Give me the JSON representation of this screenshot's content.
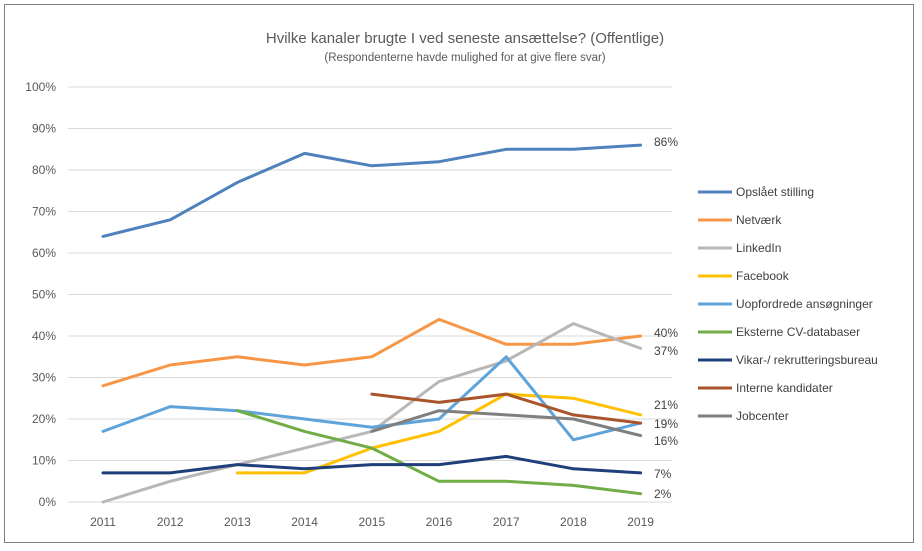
{
  "chart_data": {
    "type": "line",
    "title": "Hvilke kanaler brugte I ved seneste ansættelse? (Offentlige)",
    "subtitle": "(Respondenterne havde mulighed for at give flere svar)",
    "x": [
      "2011",
      "2012",
      "2013",
      "2014",
      "2015",
      "2016",
      "2017",
      "2018",
      "2019"
    ],
    "y_ticks": [
      "0%",
      "10%",
      "20%",
      "30%",
      "40%",
      "50%",
      "60%",
      "70%",
      "80%",
      "90%",
      "100%"
    ],
    "ylim": [
      0,
      100
    ],
    "grid": true,
    "legend_position": "right",
    "series": [
      {
        "name": "Opslået stilling",
        "color": "#4f81bd",
        "values": [
          64,
          68,
          77,
          84,
          81,
          82,
          85,
          85,
          86
        ],
        "end_label": "86%"
      },
      {
        "name": "Netværk",
        "color": "#f79646",
        "values": [
          28,
          33,
          35,
          33,
          35,
          44,
          38,
          38,
          40
        ],
        "end_label": "40%"
      },
      {
        "name": "LinkedIn",
        "color": "#b7b7b7",
        "values": [
          0,
          5,
          9,
          13,
          17,
          29,
          34,
          43,
          37
        ],
        "end_label": "37%"
      },
      {
        "name": "Facebook",
        "color": "#ffc000",
        "values": [
          null,
          null,
          7,
          7,
          13,
          17,
          26,
          25,
          21
        ],
        "end_label": "21%"
      },
      {
        "name": "Uopfordrede ansøgninger",
        "color": "#5ea3d9",
        "values": [
          17,
          23,
          22,
          20,
          18,
          20,
          35,
          15,
          19
        ],
        "end_label": "19%"
      },
      {
        "name": "Eksterne CV-databaser",
        "color": "#70ad47",
        "values": [
          null,
          null,
          22,
          17,
          13,
          5,
          5,
          4,
          2
        ],
        "end_label": "2%"
      },
      {
        "name": "Vikar-/ rekrutteringsbureau",
        "color": "#1f3f7a",
        "values": [
          7,
          7,
          9,
          8,
          9,
          9,
          11,
          8,
          7
        ],
        "end_label": "7%"
      },
      {
        "name": "Interne kandidater",
        "color": "#a9542a",
        "values": [
          null,
          null,
          null,
          null,
          26,
          24,
          26,
          21,
          19
        ],
        "end_label": ""
      },
      {
        "name": "Jobcenter",
        "color": "#7f7f7f",
        "values": [
          null,
          null,
          null,
          null,
          17,
          22,
          21,
          20,
          16
        ],
        "end_label": "16%"
      }
    ]
  }
}
